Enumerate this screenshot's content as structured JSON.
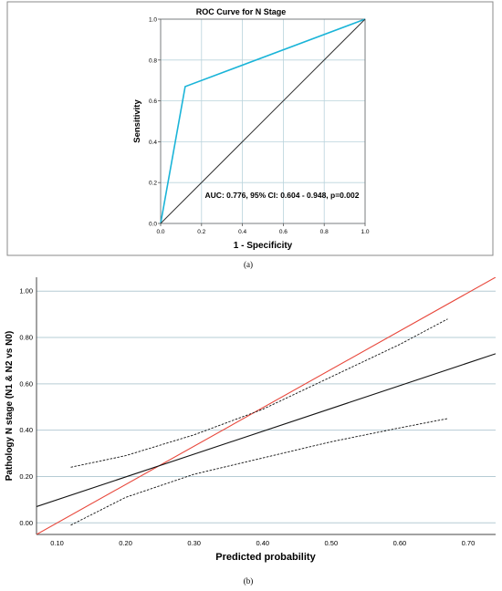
{
  "chart_data": [
    {
      "type": "line",
      "title": "ROC Curve for N Stage",
      "xlabel": "1 - Specificity",
      "ylabel": "Sensitivity",
      "xlim": [
        0,
        1
      ],
      "ylim": [
        0,
        1
      ],
      "x_ticks": [
        "0.0",
        "0.2",
        "0.4",
        "0.6",
        "0.8",
        "1.0"
      ],
      "y_ticks": [
        "0.0",
        "0.2",
        "0.4",
        "0.6",
        "0.8",
        "1.0"
      ],
      "grid": true,
      "series": [
        {
          "color": "#1ab4d8",
          "points": [
            [
              0,
              0
            ],
            [
              0.12,
              0.67
            ],
            [
              1,
              1
            ]
          ]
        },
        {
          "color": "#333333",
          "points": [
            [
              0,
              0
            ],
            [
              1,
              1
            ]
          ]
        }
      ],
      "annotation": "AUC: 0.776, 95% CI: 0.604 - 0.948, p=0.002",
      "caption": "(a)"
    },
    {
      "type": "line",
      "title": "",
      "xlabel": "Predicted probability",
      "ylabel": "Pathology N stage (N1 & N2 vs N0)",
      "xlim": [
        0.07,
        0.74
      ],
      "ylim": [
        -0.05,
        1.06
      ],
      "x_ticks": [
        "0.10",
        "0.20",
        "0.30",
        "0.40",
        "0.50",
        "0.60",
        "0.70"
      ],
      "y_ticks": [
        "0.00",
        "0.20",
        "0.40",
        "0.60",
        "0.80",
        "1.00"
      ],
      "grid": true,
      "series": [
        {
          "color": "#e8483c",
          "style": "solid",
          "points": [
            [
              0.07,
              -0.05
            ],
            [
              0.74,
              1.06
            ]
          ]
        },
        {
          "color": "#111111",
          "style": "solid",
          "points": [
            [
              0.07,
              0.07
            ],
            [
              0.74,
              0.73
            ]
          ]
        },
        {
          "color": "#111111",
          "style": "dashed",
          "points": [
            [
              0.12,
              0.24
            ],
            [
              0.2,
              0.29
            ],
            [
              0.3,
              0.38
            ],
            [
              0.4,
              0.49
            ],
            [
              0.5,
              0.63
            ],
            [
              0.6,
              0.77
            ],
            [
              0.67,
              0.88
            ]
          ]
        },
        {
          "color": "#111111",
          "style": "dashed",
          "points": [
            [
              0.12,
              -0.01
            ],
            [
              0.2,
              0.11
            ],
            [
              0.3,
              0.21
            ],
            [
              0.4,
              0.28
            ],
            [
              0.5,
              0.35
            ],
            [
              0.6,
              0.41
            ],
            [
              0.67,
              0.45
            ]
          ]
        }
      ],
      "caption": "(b)"
    }
  ]
}
